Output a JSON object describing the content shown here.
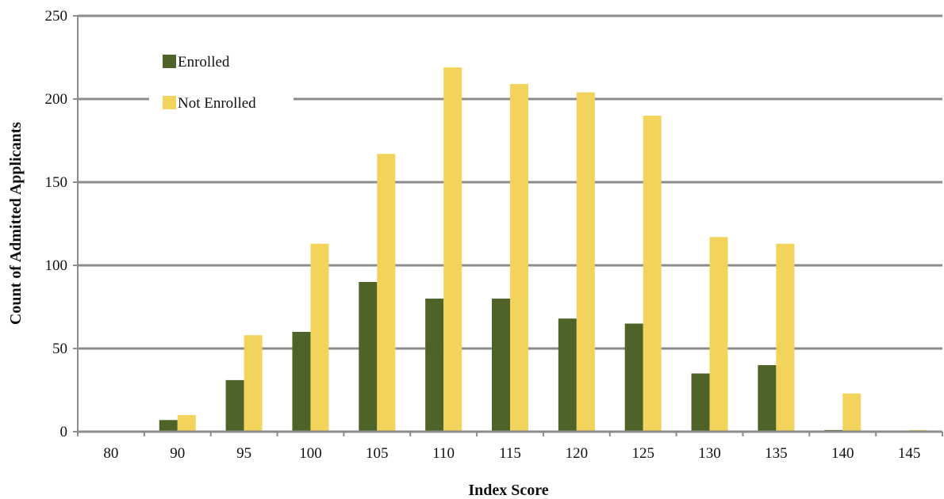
{
  "chart_data": {
    "type": "bar",
    "categories": [
      "80",
      "90",
      "95",
      "100",
      "105",
      "110",
      "115",
      "120",
      "125",
      "130",
      "135",
      "140",
      "145"
    ],
    "series": [
      {
        "name": "Enrolled",
        "color": "#4e6328",
        "values": [
          0,
          7,
          31,
          60,
          90,
          80,
          80,
          68,
          65,
          35,
          40,
          1,
          0
        ]
      },
      {
        "name": "Not Enrolled",
        "color": "#f2d35b",
        "values": [
          0,
          10,
          58,
          113,
          167,
          219,
          209,
          204,
          190,
          117,
          113,
          23,
          1
        ]
      }
    ],
    "xlabel": "Index Score",
    "ylabel": "Count of Admitted Applicants",
    "ylim": [
      0,
      250
    ],
    "yticks": [
      "0",
      "50",
      "100",
      "150",
      "200",
      "250"
    ],
    "grid": true,
    "legend_position": "top-left"
  }
}
